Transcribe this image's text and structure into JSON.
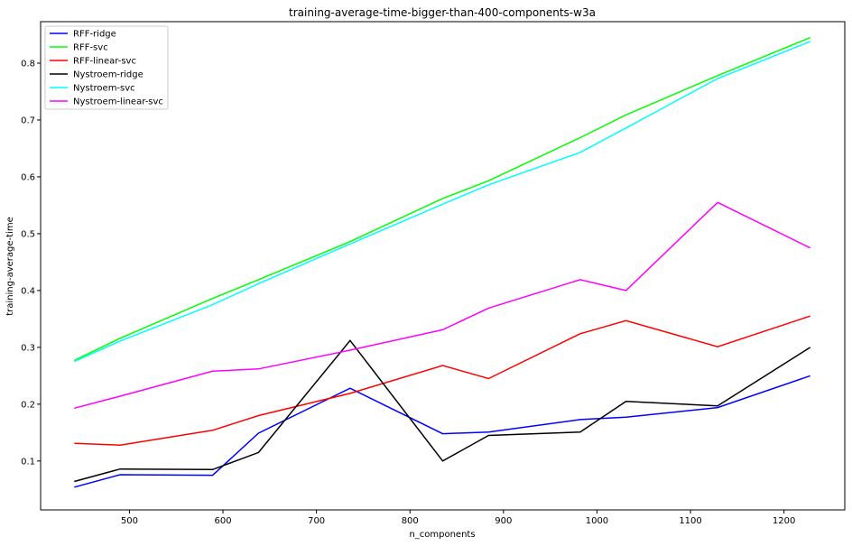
{
  "chart_data": {
    "type": "line",
    "title": "training-average-time-bigger-than-400-components-w3a",
    "xlabel": "n_components",
    "ylabel": "training-average-time",
    "xlim": [
      405,
      1265
    ],
    "ylim": [
      0.014,
      0.873
    ],
    "x_ticks": [
      500,
      600,
      700,
      800,
      900,
      1000,
      1100,
      1200
    ],
    "y_ticks": [
      0.1,
      0.2,
      0.3,
      0.4,
      0.5,
      0.6,
      0.7,
      0.8
    ],
    "grid": false,
    "legend_position": "top-left",
    "x": [
      441,
      490,
      589,
      638,
      736,
      835,
      884,
      982,
      1031,
      1129,
      1228
    ],
    "series": [
      {
        "name": "RFF-ridge",
        "color": "#0000ff",
        "values": [
          0.054,
          0.076,
          0.075,
          0.149,
          0.228,
          0.148,
          0.151,
          0.173,
          0.177,
          0.194,
          0.25
        ]
      },
      {
        "name": "RFF-svc",
        "color": "#00ff00",
        "values": [
          0.277,
          0.316,
          0.386,
          0.419,
          0.486,
          0.562,
          0.593,
          0.669,
          0.709,
          0.778,
          0.845
        ]
      },
      {
        "name": "RFF-linear-svc",
        "color": "#ff0000",
        "values": [
          0.131,
          0.128,
          0.154,
          0.18,
          0.219,
          0.268,
          0.245,
          0.324,
          0.347,
          0.301,
          0.355
        ]
      },
      {
        "name": "Nystroem-ridge",
        "color": "#000000",
        "values": [
          0.064,
          0.086,
          0.085,
          0.115,
          0.312,
          0.1,
          0.145,
          0.151,
          0.205,
          0.197,
          0.3
        ]
      },
      {
        "name": "Nystroem-svc",
        "color": "#00ffff",
        "values": [
          0.275,
          0.311,
          0.375,
          0.412,
          0.482,
          0.552,
          0.586,
          0.643,
          0.686,
          0.773,
          0.838
        ]
      },
      {
        "name": "Nystroem-linear-svc",
        "color": "#ff00ff",
        "values": [
          0.193,
          0.214,
          0.258,
          0.262,
          0.295,
          0.331,
          0.369,
          0.419,
          0.4,
          0.555,
          0.475
        ]
      }
    ]
  }
}
